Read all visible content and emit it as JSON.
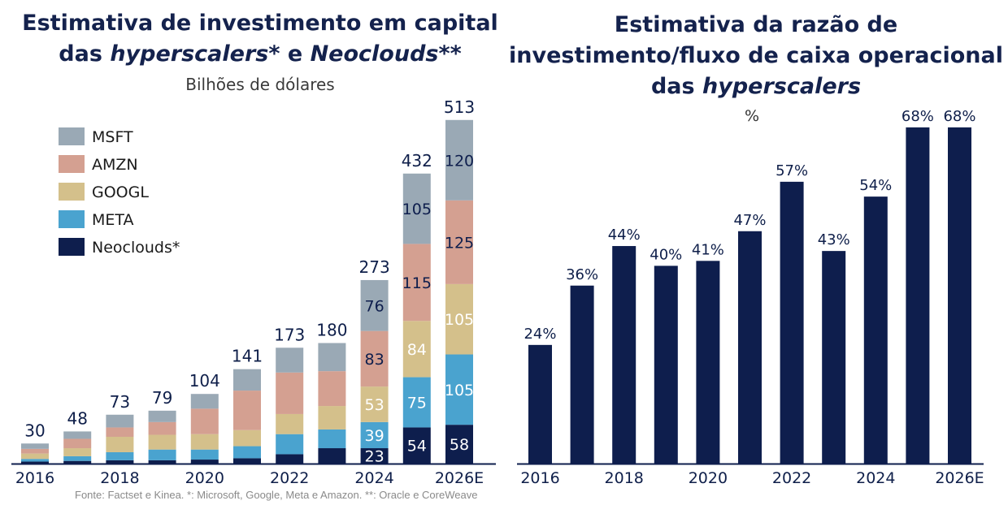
{
  "left_title": {
    "line1": "Estimativa de investimento em capital",
    "line2a": "das ",
    "line2b": "hyperscalers",
    "line2c": "* e ",
    "line2d": "Neoclouds",
    "line2e": "**"
  },
  "left_subtitle": "Bilhões de dólares",
  "right_title": {
    "line1": "Estimativa da razão de",
    "line2": "investimento/fluxo de caixa operacional",
    "line3a": "das ",
    "line3b": "hyperscalers"
  },
  "right_subtitle": "%",
  "footnote": "Fonte: Factset e Kinea. *: Microsoft, Google, Meta e Amazon. **: Oracle e CoreWeave",
  "colors": {
    "MSFT": "#9aa9b5",
    "AMZN": "#d4a091",
    "GOOGL": "#d4c08b",
    "META": "#4aa3cf",
    "Neoclouds": "#0e1e4d",
    "bar": "#0e1e4d"
  },
  "chart_data": [
    {
      "type": "bar",
      "stacked": true,
      "title": "Estimativa de investimento em capital das hyperscalers* e Neoclouds**",
      "subtitle": "Bilhões de dólares",
      "categories": [
        "2016",
        "2017",
        "2018",
        "2019",
        "2020",
        "2021",
        "2022",
        "2023",
        "2024",
        "2025",
        "2026E"
      ],
      "x_tick_labels": [
        "2016",
        "",
        "2018",
        "",
        "2020",
        "",
        "2022",
        "",
        "2024",
        "",
        "2026E"
      ],
      "totals": [
        30,
        48,
        73,
        79,
        104,
        141,
        173,
        180,
        273,
        432,
        513
      ],
      "series": [
        {
          "name": "Neoclouds*",
          "values": [
            3,
            4,
            5,
            5,
            6,
            8,
            14,
            23,
            23,
            54,
            58
          ],
          "labels": [
            null,
            null,
            null,
            null,
            null,
            null,
            null,
            null,
            "23",
            "54",
            "58"
          ]
        },
        {
          "name": "META",
          "values": [
            4,
            7,
            12,
            16,
            15,
            18,
            30,
            28,
            39,
            75,
            105
          ],
          "labels": [
            null,
            null,
            null,
            null,
            null,
            null,
            null,
            null,
            "39",
            "75",
            "105"
          ]
        },
        {
          "name": "GOOGL",
          "values": [
            8,
            12,
            23,
            22,
            23,
            24,
            30,
            35,
            53,
            84,
            105
          ],
          "labels": [
            null,
            null,
            null,
            null,
            null,
            null,
            null,
            null,
            "53",
            "84",
            "105"
          ]
        },
        {
          "name": "AMZN",
          "values": [
            7,
            14,
            14,
            19,
            38,
            59,
            62,
            52,
            83,
            115,
            125
          ],
          "labels": [
            null,
            null,
            null,
            null,
            null,
            null,
            null,
            null,
            "83",
            "115",
            "125"
          ]
        },
        {
          "name": "MSFT",
          "values": [
            8,
            11,
            19,
            17,
            22,
            32,
            37,
            42,
            76,
            105,
            120
          ],
          "labels": [
            null,
            null,
            null,
            null,
            null,
            null,
            null,
            null,
            "76",
            "105",
            "120"
          ]
        }
      ],
      "legend": [
        "MSFT",
        "AMZN",
        "GOOGL",
        "META",
        "Neoclouds*"
      ],
      "legend_position": "top-left",
      "ylim": [
        0,
        520
      ],
      "grid": false
    },
    {
      "type": "bar",
      "title": "Estimativa da razão de investimento/fluxo de caixa operacional das hyperscalers",
      "subtitle": "%",
      "categories": [
        "2016",
        "2017",
        "2018",
        "2019",
        "2020",
        "2021",
        "2022",
        "2023",
        "2024",
        "2025",
        "2026E"
      ],
      "x_tick_labels": [
        "2016",
        "",
        "2018",
        "",
        "2020",
        "",
        "2022",
        "",
        "2024",
        "",
        "2026E"
      ],
      "values": [
        24,
        36,
        44,
        40,
        41,
        47,
        57,
        43,
        54,
        68,
        68
      ],
      "value_labels": [
        "24%",
        "36%",
        "44%",
        "40%",
        "41%",
        "47%",
        "57%",
        "43%",
        "54%",
        "68%",
        "68%"
      ],
      "ylim": [
        0,
        70
      ],
      "grid": false
    }
  ]
}
